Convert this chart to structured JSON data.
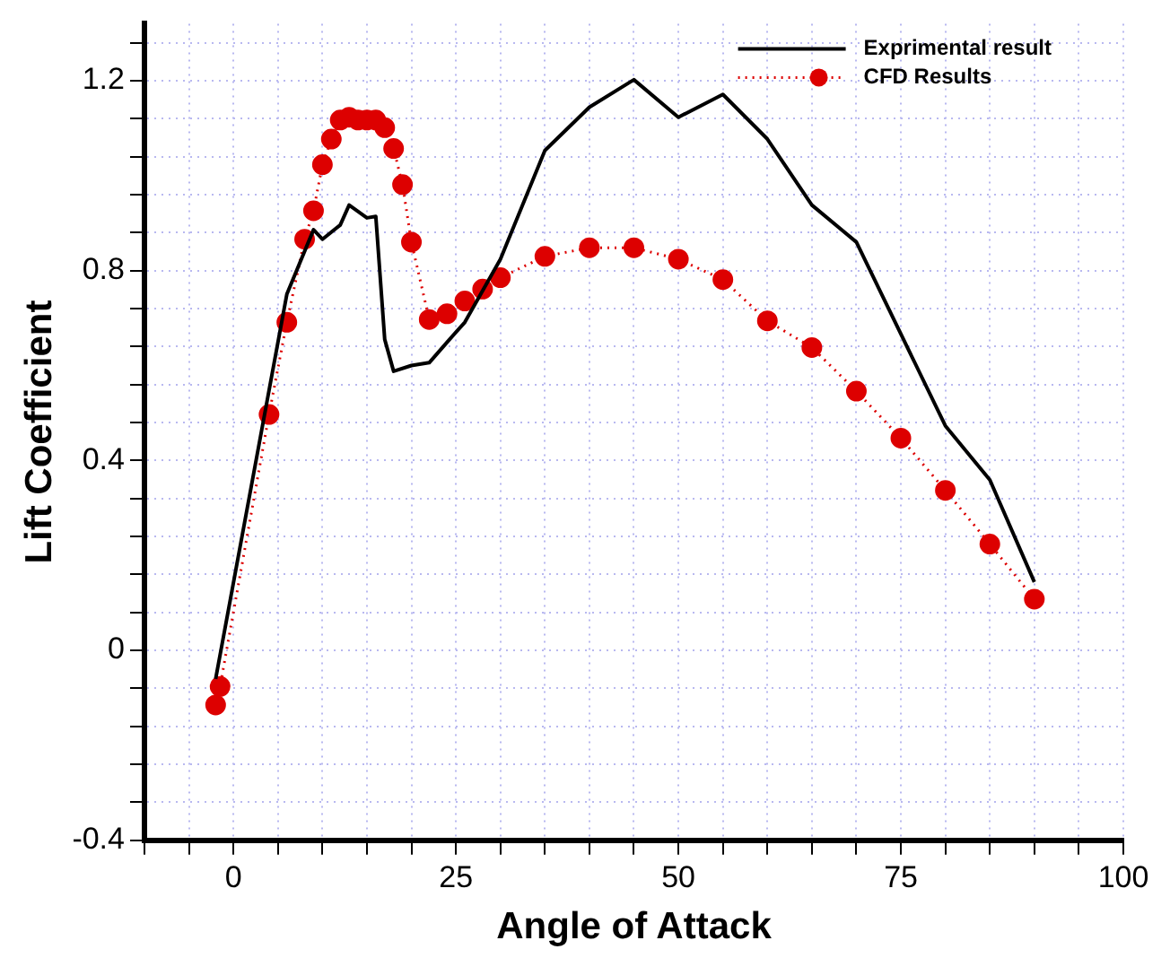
{
  "chart_data": {
    "type": "line",
    "xlabel": "Angle of Attack",
    "ylabel": "Lift Coefficient",
    "xlim": [
      -10,
      100
    ],
    "xticks": [
      {
        "value": -10,
        "label": null
      },
      {
        "value": -5,
        "label": null
      },
      0,
      {
        "value": 5,
        "label": null
      },
      {
        "value": 10,
        "label": null
      },
      {
        "value": 15,
        "label": null
      },
      {
        "value": 20,
        "label": null
      },
      25,
      {
        "value": 30,
        "label": null
      },
      {
        "value": 35,
        "label": null
      },
      {
        "value": 40,
        "label": null
      },
      {
        "value": 45,
        "label": null
      },
      50,
      {
        "value": 55,
        "label": null
      },
      {
        "value": 60,
        "label": null
      },
      {
        "value": 65,
        "label": null
      },
      {
        "value": 70,
        "label": null
      },
      75,
      {
        "value": 80,
        "label": null
      },
      {
        "value": 85,
        "label": null
      },
      {
        "value": 90,
        "label": null
      },
      {
        "value": 95,
        "label": null
      },
      100
    ],
    "ylim": [
      -0.4,
      1.32
    ],
    "yticks": [
      -0.4,
      {
        "value": -0.32,
        "label": null
      },
      {
        "value": -0.24,
        "label": null
      },
      {
        "value": -0.16,
        "label": null
      },
      {
        "value": -0.08,
        "label": null
      },
      0,
      {
        "value": 0.08,
        "label": null
      },
      {
        "value": 0.16,
        "label": null
      },
      {
        "value": 0.24,
        "label": null
      },
      {
        "value": 0.32,
        "label": null
      },
      0.4,
      {
        "value": 0.48,
        "label": null
      },
      {
        "value": 0.56,
        "label": null
      },
      {
        "value": 0.64,
        "label": null
      },
      {
        "value": 0.72,
        "label": null
      },
      0.8,
      {
        "value": 0.88,
        "label": null
      },
      {
        "value": 0.96,
        "label": null
      },
      {
        "value": 1.04,
        "label": null
      },
      {
        "value": 1.12,
        "label": null
      },
      1.2,
      {
        "value": 1.28,
        "label": null
      }
    ],
    "grid": true,
    "legend": "top right",
    "series": [
      {
        "name": "Exprimental result",
        "color": "#000000",
        "marker": "none",
        "line_style": "solid",
        "x": [
          -2,
          6,
          9,
          10,
          12,
          13,
          15,
          16,
          17,
          18,
          20,
          22,
          24,
          26,
          30,
          35,
          40,
          45,
          50,
          55,
          60,
          65,
          70,
          80,
          85,
          90
        ],
        "values": [
          -0.06,
          0.75,
          0.886,
          0.866,
          0.896,
          0.938,
          0.911,
          0.914,
          0.655,
          0.588,
          0.6,
          0.606,
          0.649,
          0.691,
          0.824,
          1.053,
          1.144,
          1.202,
          1.123,
          1.171,
          1.077,
          0.938,
          0.86,
          0.473,
          0.359,
          0.144
        ]
      },
      {
        "name": "CFD Results",
        "color": "#dd0000",
        "marker": "circle",
        "line_style": "dotted",
        "x": [
          -2,
          -1.5,
          4,
          6,
          8,
          9,
          10,
          11,
          12,
          13,
          14,
          15,
          16,
          17,
          18,
          19,
          20,
          22,
          24,
          26,
          28,
          30,
          35,
          40,
          45,
          50,
          55,
          60,
          65,
          70,
          75,
          80,
          85,
          90
        ],
        "values": [
          -0.115,
          -0.076,
          0.497,
          0.691,
          0.866,
          0.926,
          1.023,
          1.077,
          1.117,
          1.123,
          1.117,
          1.117,
          1.117,
          1.101,
          1.057,
          0.981,
          0.86,
          0.697,
          0.709,
          0.736,
          0.761,
          0.785,
          0.83,
          0.848,
          0.848,
          0.824,
          0.781,
          0.694,
          0.638,
          0.546,
          0.447,
          0.337,
          0.224,
          0.108
        ]
      }
    ]
  }
}
